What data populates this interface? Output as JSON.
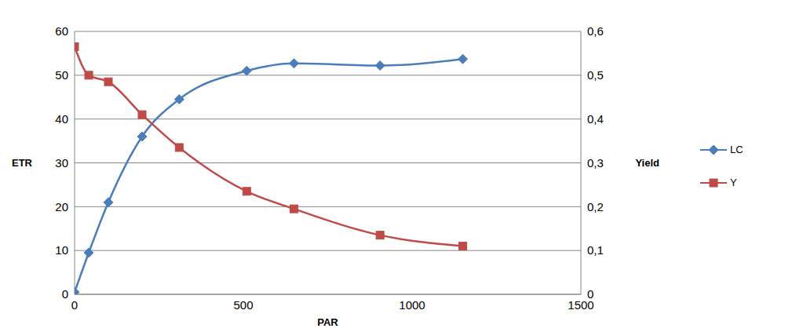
{
  "chart_data": {
    "type": "line",
    "x_label": "PAR",
    "y_label": "ETR",
    "y2_label": "Yield",
    "x": [
      0,
      42,
      100,
      200,
      310,
      510,
      650,
      905,
      1150
    ],
    "series": [
      {
        "name": "LC",
        "color": "#4a7ebb",
        "marker": "diamond",
        "values": [
          0.5,
          9.5,
          21,
          36,
          44.5,
          51,
          52.7,
          52.2,
          53.7
        ]
      },
      {
        "name": "Y",
        "color": "#be4b48",
        "marker": "square",
        "axis": "y2",
        "values": [
          0.565,
          0.5,
          0.485,
          0.41,
          0.335,
          0.235,
          0.195,
          0.135,
          0.11
        ]
      }
    ],
    "xlim": [
      0,
      1500
    ],
    "xticks": [
      0,
      500,
      1000,
      1500
    ],
    "ylim": [
      0,
      60
    ],
    "yticks": [
      0,
      10,
      20,
      30,
      40,
      50,
      60
    ],
    "y2lim": [
      0,
      0.6
    ],
    "y2ticks": [
      0,
      {
        "value": 0.1,
        "label": "0,1"
      },
      {
        "value": 0.2,
        "label": "0,2"
      },
      {
        "value": 0.3,
        "label": "0,3"
      },
      {
        "value": 0.4,
        "label": "0,4"
      },
      {
        "value": 0.5,
        "label": "0,5"
      },
      {
        "value": 0.6,
        "label": "0,6"
      }
    ],
    "grid": true,
    "legend": "right"
  }
}
